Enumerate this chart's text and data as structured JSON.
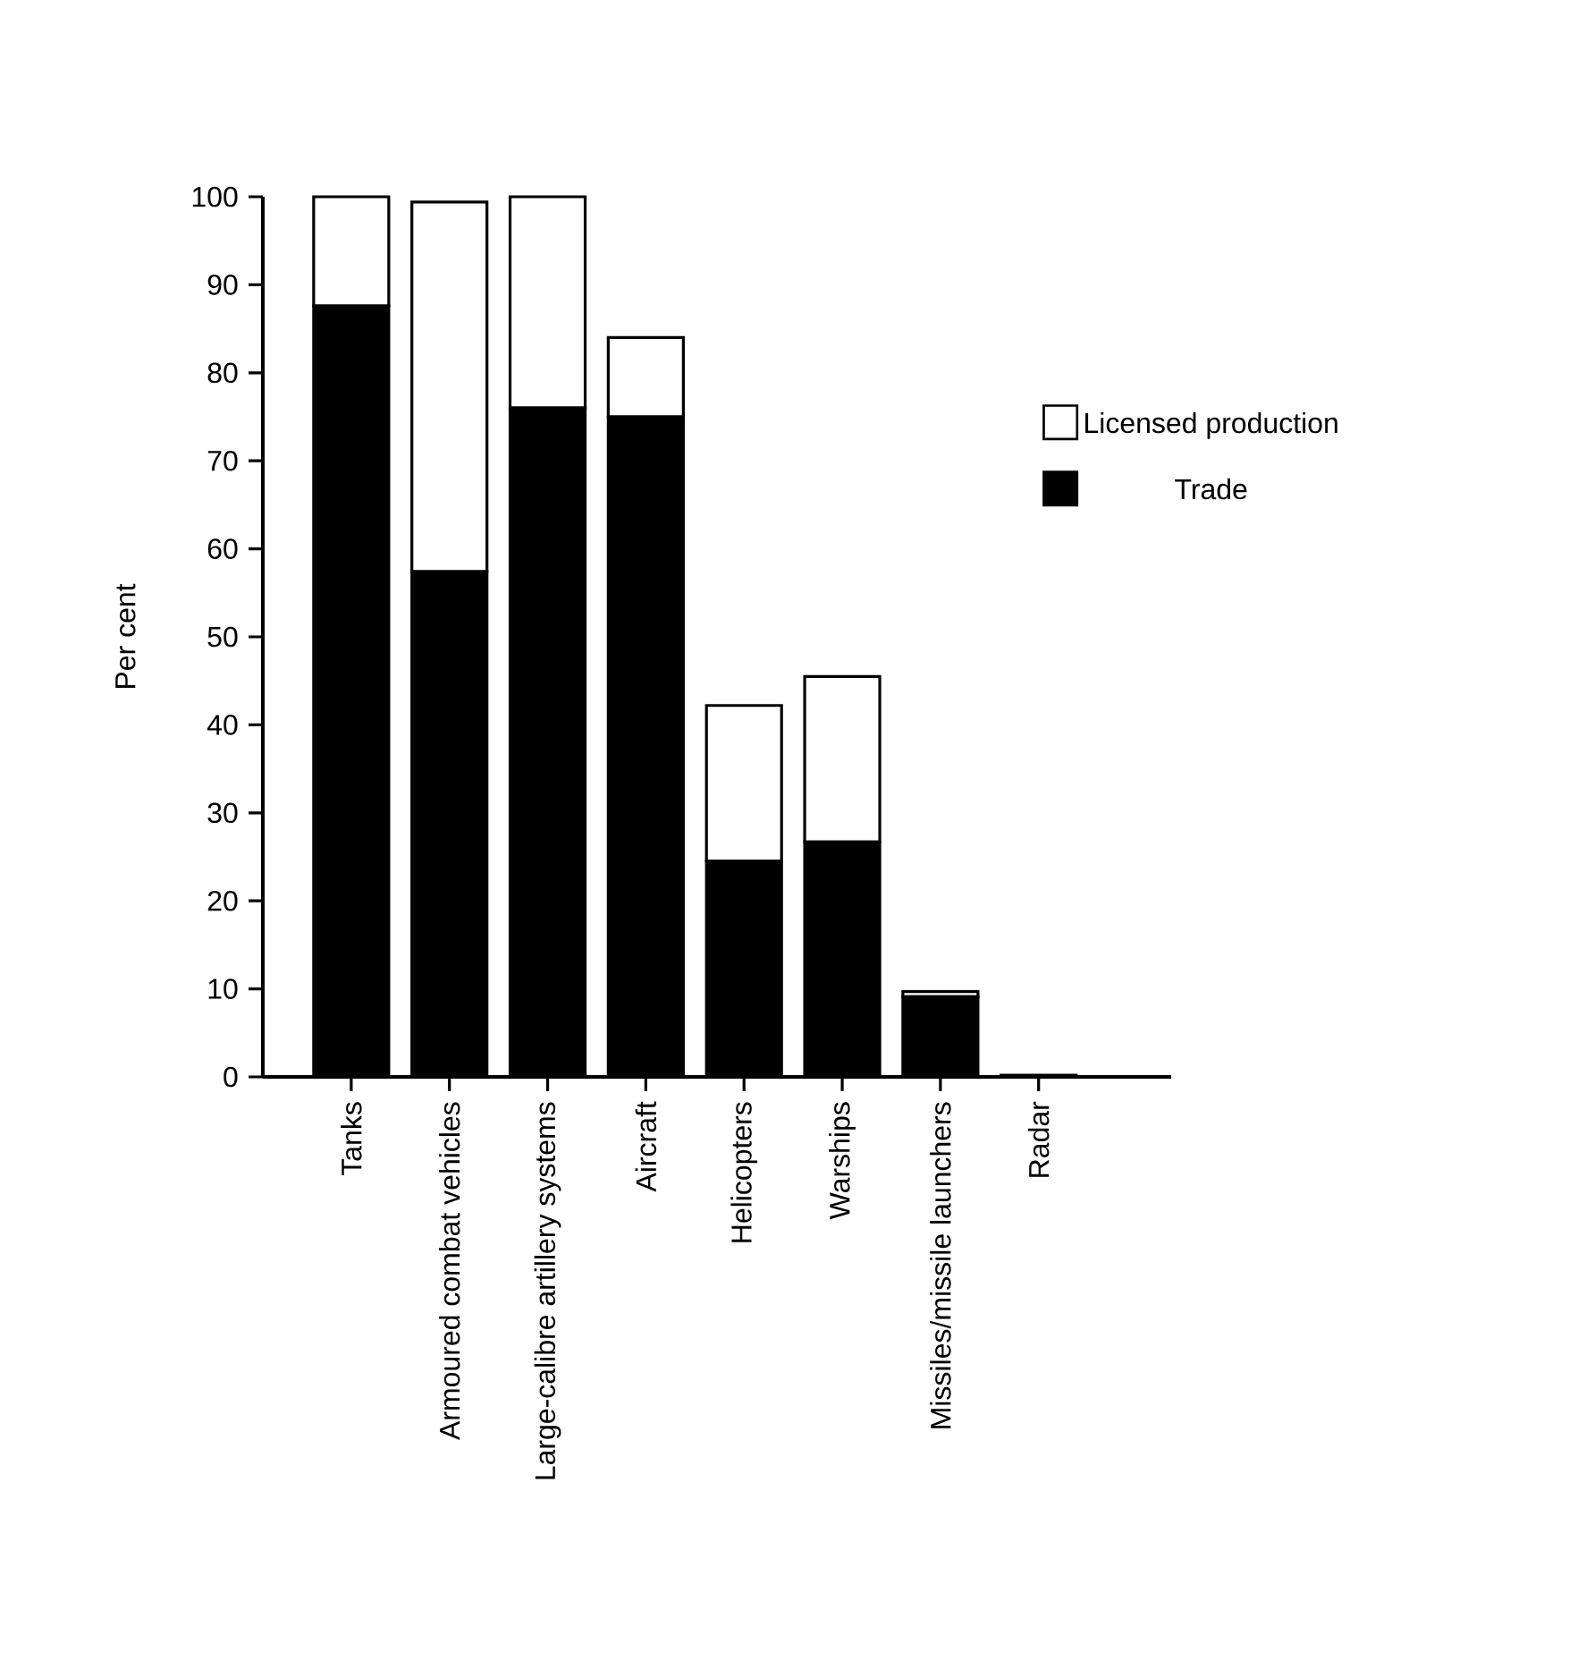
{
  "chart_data": {
    "type": "bar",
    "stacked": true,
    "ylabel": "Per cent",
    "categories": [
      "Tanks",
      "Armoured combat vehicles",
      "Large-calibre artillery systems",
      "Aircraft",
      "Helicopters",
      "Warships",
      "Missiles/missile launchers",
      "Radar"
    ],
    "series": [
      {
        "name": "Trade",
        "color": "#000000",
        "values": [
          87.6,
          57.4,
          76.0,
          75.0,
          24.5,
          26.7,
          9.1,
          0
        ]
      },
      {
        "name": "Licensed production",
        "color": "#ffffff",
        "values": [
          12.4,
          42.0,
          24.0,
          9.0,
          17.7,
          18.8,
          0.6,
          0.2
        ]
      }
    ],
    "ylim": [
      0,
      100
    ],
    "yticks": [
      0,
      10,
      20,
      30,
      40,
      50,
      60,
      70,
      80,
      90,
      100
    ],
    "grid": false,
    "legend": "right"
  }
}
